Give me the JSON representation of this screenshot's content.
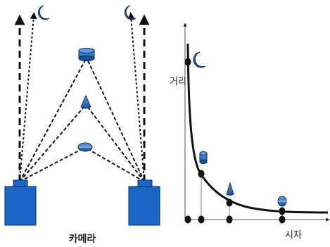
{
  "labels": {
    "camera": "카메라",
    "distance_axis": "거리",
    "disparity_axis": "시차"
  },
  "icons": {
    "far_object": "crescent-moon-icon",
    "near_object_1": "cylinder-icon",
    "near_object_2": "cone-icon",
    "near_object_3": "ellipsoid-icon",
    "camera": "camera-box-icon"
  },
  "colors": {
    "object_fill": "#1f5fa8",
    "camera_fill": "#1a66c6",
    "line": "#111111"
  }
}
